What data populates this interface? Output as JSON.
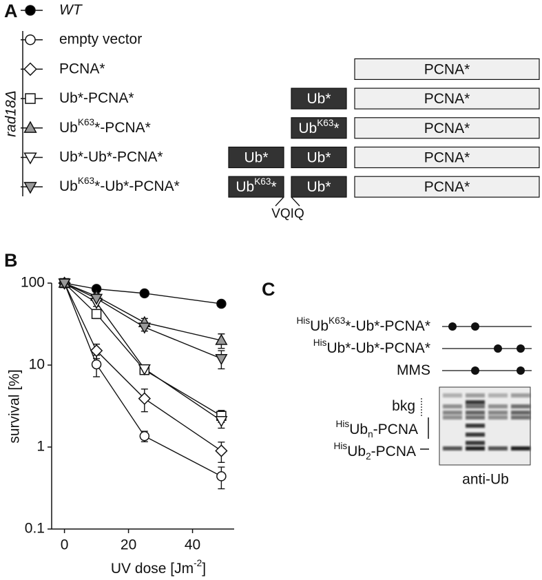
{
  "panel_a": {
    "label": "A",
    "group_label": "rad18Δ",
    "linker_label": "VQIQ",
    "ub_color": "#333333",
    "pcna_color": "#f0f0f0",
    "constructs": [
      [],
      [],
      [
        {
          "kind": "pcna",
          "label": [
            {
              "t": "PCNA*"
            }
          ]
        }
      ],
      [
        {
          "kind": "ub",
          "label": [
            {
              "t": "Ub*"
            }
          ]
        },
        {
          "kind": "pcna",
          "label": [
            {
              "t": "PCNA*"
            }
          ]
        }
      ],
      [
        {
          "kind": "ub",
          "label": [
            {
              "t": "Ub"
            },
            {
              "t": "K63",
              "s": "sup"
            },
            {
              "t": "*"
            }
          ]
        },
        {
          "kind": "pcna",
          "label": [
            {
              "t": "PCNA*"
            }
          ]
        }
      ],
      [
        {
          "kind": "ub",
          "label": [
            {
              "t": "Ub*"
            }
          ]
        },
        {
          "kind": "ub",
          "label": [
            {
              "t": "Ub*"
            }
          ]
        },
        {
          "kind": "pcna",
          "label": [
            {
              "t": "PCNA*"
            }
          ]
        }
      ],
      [
        {
          "kind": "ub",
          "label": [
            {
              "t": "Ub"
            },
            {
              "t": "K63",
              "s": "sup"
            },
            {
              "t": "*"
            }
          ]
        },
        {
          "kind": "ub",
          "label": [
            {
              "t": "Ub*"
            }
          ]
        },
        {
          "kind": "pcna",
          "label": [
            {
              "t": "PCNA*"
            }
          ]
        }
      ]
    ]
  },
  "chart_data": {
    "type": "line",
    "label": "B",
    "x_label": [
      {
        "t": "UV dose [Jm"
      },
      {
        "t": "-2",
        "s": "sup"
      },
      {
        "t": "]"
      }
    ],
    "y_label": "survival [%]",
    "x": [
      0,
      10,
      25,
      49
    ],
    "xlim": [
      -4,
      53
    ],
    "xticks": [
      0,
      20,
      40
    ],
    "ylim": [
      0.1,
      100
    ],
    "yticks": [
      0.1,
      1,
      10,
      100
    ],
    "log_y": true,
    "series": [
      {
        "name": [
          {
            "t": "WT",
            "s": "italic"
          }
        ],
        "marker": "circle",
        "color": "#000000",
        "values": [
          100,
          85,
          75,
          56
        ]
      },
      {
        "name": [
          {
            "t": "empty vector"
          }
        ],
        "marker": "circle",
        "color": "#ffffff",
        "values": [
          100,
          10.2,
          1.36,
          0.44
        ],
        "errors": [
          null,
          3,
          0.2,
          0.13
        ]
      },
      {
        "name": [
          {
            "t": "PCNA*"
          }
        ],
        "marker": "diamond",
        "color": "#ffffff",
        "values": [
          100,
          15,
          3.9,
          0.9
        ],
        "errors": [
          null,
          3,
          1.2,
          0.25
        ]
      },
      {
        "name": [
          {
            "t": "Ub*-PCNA*"
          }
        ],
        "marker": "square",
        "color": "#ffffff",
        "values": [
          100,
          42,
          8.7,
          2.4
        ],
        "errors": [
          null,
          5,
          1,
          0.4
        ]
      },
      {
        "name": [
          {
            "t": "Ub"
          },
          {
            "t": "K63",
            "s": "sup"
          },
          {
            "t": "*-PCNA*"
          }
        ],
        "marker": "triangle-up",
        "color": "#999999",
        "values": [
          100,
          69,
          33,
          20
        ],
        "errors": [
          null,
          5,
          4,
          4
        ]
      },
      {
        "name": [
          {
            "t": "Ub*-Ub*-PCNA*"
          }
        ],
        "marker": "triangle-down",
        "color": "#ffffff",
        "values": [
          100,
          58,
          9,
          2.1
        ],
        "errors": [
          null,
          6,
          1,
          0.4
        ]
      },
      {
        "name": [
          {
            "t": "Ub"
          },
          {
            "t": "K63",
            "s": "sup"
          },
          {
            "t": "*-Ub*-PCNA*"
          }
        ],
        "marker": "triangle-down",
        "color": "#999999",
        "values": [
          100,
          65,
          29,
          12
        ],
        "errors": [
          null,
          5,
          3,
          3
        ]
      }
    ]
  },
  "panel_c": {
    "label": "C",
    "rows": [
      {
        "label": [
          {
            "t": "His",
            "s": "sup"
          },
          {
            "t": "Ub"
          },
          {
            "t": "K63",
            "s": "sup"
          },
          {
            "t": "*-Ub*-PCNA*"
          }
        ],
        "lanes": [
          true,
          true,
          false,
          false
        ]
      },
      {
        "label": [
          {
            "t": "His",
            "s": "sup"
          },
          {
            "t": "Ub*-Ub*-PCNA*"
          }
        ],
        "lanes": [
          false,
          false,
          true,
          true
        ]
      },
      {
        "label": [
          {
            "t": "MMS"
          }
        ],
        "lanes": [
          false,
          true,
          false,
          true
        ]
      }
    ],
    "bkg_label": [
      {
        "t": "bkg"
      }
    ],
    "ubn_label": [
      {
        "t": "His",
        "s": "sup"
      },
      {
        "t": "Ub"
      },
      {
        "t": "n",
        "s": "sub"
      },
      {
        "t": "-PCNA"
      }
    ],
    "ub2_label": [
      {
        "t": "His",
        "s": "sup"
      },
      {
        "t": "Ub"
      },
      {
        "t": "2",
        "s": "sub"
      },
      {
        "t": "-PCNA"
      }
    ],
    "antibody_label": "anti-Ub"
  }
}
